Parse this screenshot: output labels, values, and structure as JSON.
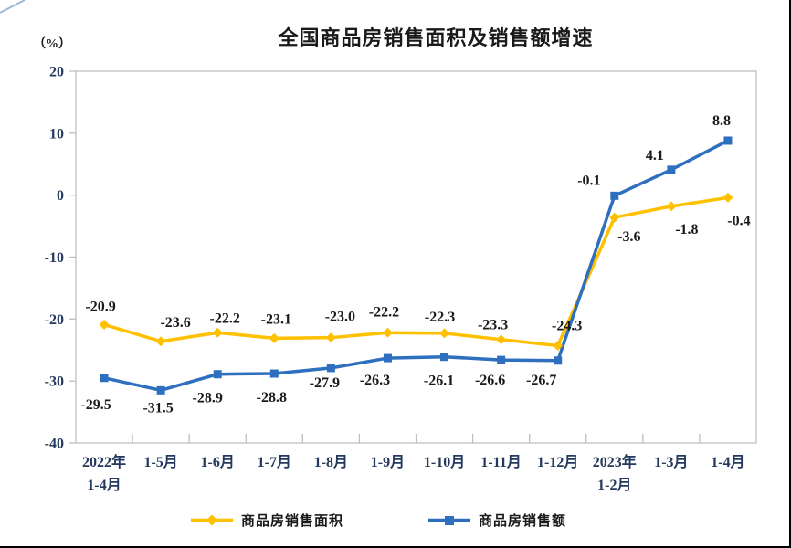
{
  "title": "全国商品房销售面积及销售额增速",
  "chart_data": {
    "type": "line",
    "title": "全国商品房销售面积及销售额增速",
    "y_unit_label": "（%）",
    "categories": [
      "2022年\n1-4月",
      "1-5月",
      "1-6月",
      "1-7月",
      "1-8月",
      "1-9月",
      "1-10月",
      "1-11月",
      "1-12月",
      "2023年\n1-2月",
      "1-3月",
      "1-4月"
    ],
    "series": [
      {
        "name": "商品房销售面积",
        "marker": "diamond",
        "color": "#FFC000",
        "values": [
          -20.9,
          -23.6,
          -22.2,
          -23.1,
          -23.0,
          -22.2,
          -22.3,
          -23.3,
          -24.3,
          -3.6,
          -1.8,
          -0.4
        ],
        "labels": [
          "-20.9",
          "-23.6",
          "-22.2",
          "-23.1",
          "-23.0",
          "-22.2",
          "-22.3",
          "-23.3",
          "-24.3",
          "-3.6",
          "-1.8",
          "-0.4"
        ]
      },
      {
        "name": "商品房销售额",
        "marker": "square",
        "color": "#2E6FBF",
        "values": [
          -29.5,
          -31.5,
          -28.9,
          -28.8,
          -27.9,
          -26.3,
          -26.1,
          -26.6,
          -26.7,
          -0.1,
          4.1,
          8.8
        ],
        "labels": [
          "-29.5",
          "-31.5",
          "-28.9",
          "-28.8",
          "-27.9",
          "-26.3",
          "-26.1",
          "-26.6",
          "-26.7",
          "-0.1",
          "4.1",
          "8.8"
        ]
      }
    ],
    "ylim": [
      -40,
      20
    ],
    "ytick_step": 10,
    "grid": false,
    "legend_position": "bottom",
    "colors": {
      "axis_text": "#24395E",
      "label_text": "#1A1A1A",
      "plot_border": "#BFBFBF"
    }
  }
}
